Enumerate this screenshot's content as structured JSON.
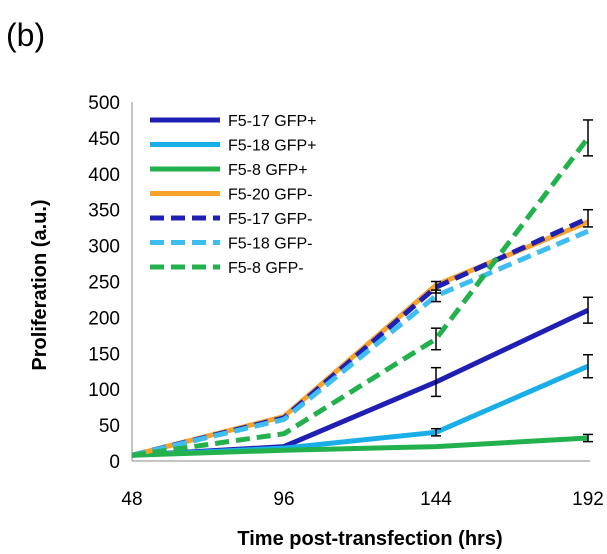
{
  "panel_label": "(b)",
  "chart_data": {
    "type": "line",
    "xlabel": "Time post-transfection (hrs)",
    "ylabel": "Proliferation (a.u.)",
    "x": [
      48,
      96,
      144,
      192
    ],
    "xticks": [
      "48",
      "96",
      "144",
      "192"
    ],
    "ylim": [
      0,
      500
    ],
    "yticks": [
      "0",
      "50",
      "100",
      "150",
      "200",
      "250",
      "300",
      "350",
      "400",
      "450",
      "500"
    ],
    "grid": false,
    "legend_position": "top-left",
    "series": [
      {
        "name": "F5-17 GFP+",
        "color": "#1f1fb4",
        "dash": "solid",
        "values": [
          8,
          20,
          110,
          210
        ],
        "errors": [
          0,
          0,
          20,
          18
        ]
      },
      {
        "name": "F5-18 GFP+",
        "color": "#1aaee8",
        "dash": "solid",
        "values": [
          8,
          18,
          40,
          132
        ],
        "errors": [
          0,
          0,
          5,
          16
        ]
      },
      {
        "name": "F5-8 GFP+",
        "color": "#22b14c",
        "dash": "solid",
        "values": [
          8,
          15,
          20,
          32
        ],
        "errors": [
          0,
          0,
          0,
          5
        ]
      },
      {
        "name": "F5-20  GFP-",
        "color": "#f7a22b",
        "dash": "solid",
        "values": [
          8,
          62,
          245,
          333
        ],
        "errors": [
          0,
          0,
          0,
          0
        ]
      },
      {
        "name": "F5-17 GFP-",
        "color": "#1f1fb4",
        "dash": "dashed",
        "values": [
          8,
          60,
          242,
          338
        ],
        "errors": [
          0,
          0,
          8,
          12
        ]
      },
      {
        "name": "F5-18 GFP-",
        "color": "#3fbcf0",
        "dash": "dashed",
        "values": [
          8,
          58,
          230,
          320
        ],
        "errors": [
          0,
          0,
          8,
          0
        ]
      },
      {
        "name": "F5-8 GFP-",
        "color": "#22b14c",
        "dash": "dashed",
        "values": [
          8,
          38,
          170,
          450
        ],
        "errors": [
          0,
          0,
          15,
          25
        ]
      }
    ]
  }
}
